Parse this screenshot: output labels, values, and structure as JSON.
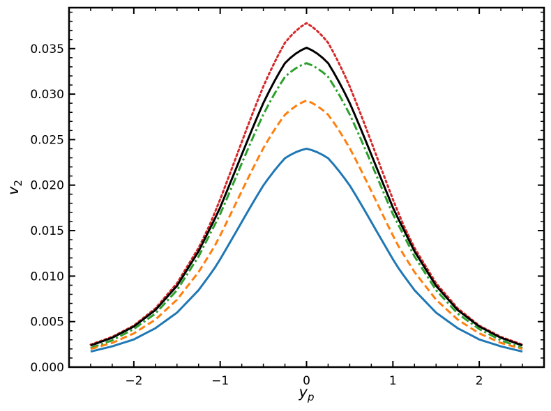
{
  "chart_data": {
    "type": "line",
    "xlabel": "y",
    "xlabel_sub": "p",
    "ylabel": "v",
    "ylabel_sub": "2",
    "xlim": [
      -2.75,
      2.75
    ],
    "ylim": [
      0.0,
      0.0395
    ],
    "x_ticks": [
      -2,
      -1,
      0,
      1,
      2
    ],
    "x_tick_labels": [
      "−2",
      "−1",
      "0",
      "1",
      "2"
    ],
    "y_ticks": [
      0.0,
      0.005,
      0.01,
      0.015,
      0.02,
      0.025,
      0.03,
      0.035
    ],
    "y_tick_labels": [
      "0.000",
      "0.005",
      "0.010",
      "0.015",
      "0.020",
      "0.025",
      "0.030",
      "0.035"
    ],
    "grid": false,
    "ticks_direction": "in",
    "ticks_all_sides": true,
    "curve_x": [
      -2.5,
      -2.25,
      -2.0,
      -1.75,
      -1.5,
      -1.25,
      -1.0,
      -0.75,
      -0.5,
      -0.25,
      0.0,
      0.25,
      0.5,
      0.75,
      1.0,
      1.25,
      1.5,
      1.75,
      2.0,
      2.25,
      2.5
    ],
    "series": [
      {
        "style": "dotted",
        "color": "#d62728",
        "peak": 0.0378,
        "values": [
          0.0026,
          0.0035,
          0.0048,
          0.0068,
          0.0097,
          0.0138,
          0.0189,
          0.0246,
          0.0303,
          0.0352,
          0.0378,
          0.0352,
          0.0303,
          0.0246,
          0.0189,
          0.0138,
          0.0097,
          0.0068,
          0.0048,
          0.0035,
          0.0026
        ]
      },
      {
        "style": "solid",
        "color": "#000000",
        "peak": 0.0351,
        "values": [
          0.0025,
          0.0034,
          0.0047,
          0.0066,
          0.0094,
          0.0134,
          0.0184,
          0.0236,
          0.0289,
          0.0333,
          0.0351,
          0.0333,
          0.0289,
          0.0236,
          0.0184,
          0.0134,
          0.0094,
          0.0066,
          0.0047,
          0.0034,
          0.0025
        ]
      },
      {
        "style": "dashdot",
        "color": "#2ca02c",
        "peak": 0.0334,
        "values": [
          0.0022,
          0.0031,
          0.0044,
          0.0062,
          0.0089,
          0.0128,
          0.0177,
          0.0228,
          0.0278,
          0.0319,
          0.0334,
          0.0319,
          0.0278,
          0.0228,
          0.0177,
          0.0128,
          0.0089,
          0.0062,
          0.0044,
          0.0031,
          0.0022
        ]
      },
      {
        "style": "dashed",
        "color": "#ff7f0e",
        "peak": 0.0293,
        "values": [
          0.0021,
          0.0028,
          0.0039,
          0.0055,
          0.0078,
          0.011,
          0.015,
          0.0194,
          0.0238,
          0.0275,
          0.0293,
          0.0275,
          0.0238,
          0.0194,
          0.015,
          0.011,
          0.0078,
          0.0055,
          0.0039,
          0.0028,
          0.0021
        ]
      },
      {
        "style": "solid",
        "color": "#1f77b4",
        "peak": 0.024,
        "values": [
          0.0018,
          0.0024,
          0.0032,
          0.0045,
          0.0063,
          0.0089,
          0.0123,
          0.0161,
          0.02,
          0.023,
          0.024,
          0.023,
          0.02,
          0.0161,
          0.0123,
          0.0089,
          0.0063,
          0.0045,
          0.0032,
          0.0024,
          0.0018
        ]
      }
    ]
  }
}
